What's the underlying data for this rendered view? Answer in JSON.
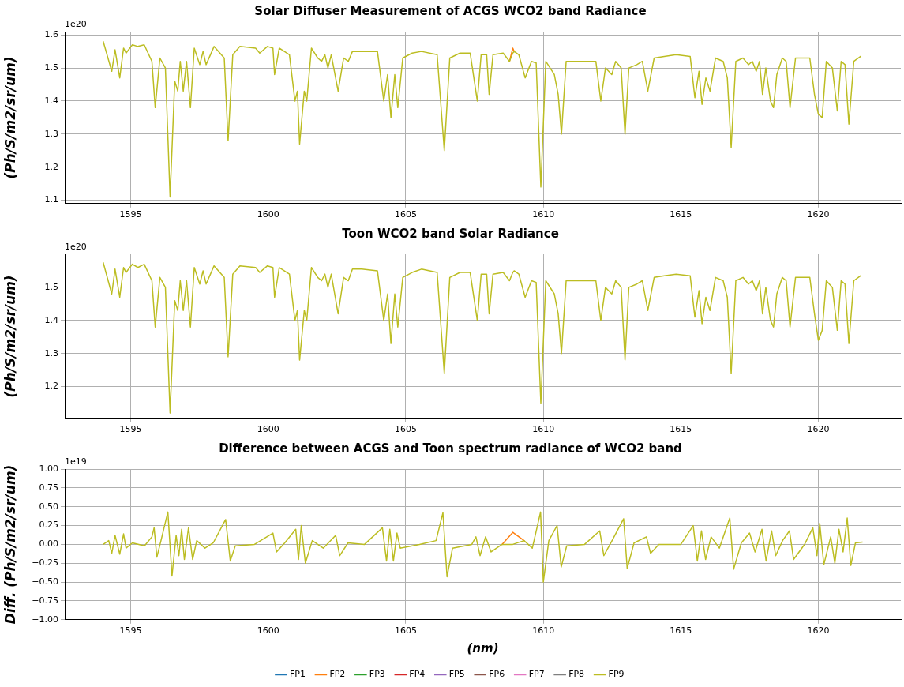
{
  "chart_data": [
    {
      "type": "line",
      "title": "Solar Diffuser Measurement of ACGS WCO2 band Radiance",
      "ylabel": "(Ph/S/m2/sr/um)",
      "annotations": [
        "1e20"
      ],
      "grid": true,
      "legend": false,
      "marker": "none",
      "line_style": "solid",
      "xlim": [
        1592.6,
        1623.0
      ],
      "xticks": [
        1595,
        1600,
        1605,
        1610,
        1615,
        1620
      ],
      "ylim": [
        1.09,
        1.61
      ],
      "yticks": [
        {
          "value": 1.1,
          "label": "1.1"
        },
        {
          "value": 1.2,
          "label": "1.2"
        },
        {
          "value": 1.3,
          "label": "1.3"
        },
        {
          "value": 1.4,
          "label": "1.4"
        },
        {
          "value": 1.5,
          "label": "1.5"
        },
        {
          "value": 1.6,
          "label": "1.6"
        }
      ],
      "x": [
        1594.0,
        1594.31,
        1594.43,
        1594.6,
        1594.74,
        1594.83,
        1595.06,
        1595.26,
        1595.49,
        1595.77,
        1595.89,
        1596.06,
        1596.26,
        1596.43,
        1596.6,
        1596.71,
        1596.8,
        1596.91,
        1597.03,
        1597.17,
        1597.31,
        1597.51,
        1597.63,
        1597.74,
        1598.03,
        1598.4,
        1598.54,
        1598.71,
        1598.97,
        1599.54,
        1599.69,
        1599.97,
        1600.17,
        1600.23,
        1600.4,
        1600.77,
        1600.97,
        1601.06,
        1601.14,
        1601.31,
        1601.4,
        1601.57,
        1601.8,
        1601.94,
        1602.06,
        1602.17,
        1602.29,
        1602.54,
        1602.74,
        1602.91,
        1603.06,
        1603.4,
        1603.97,
        1604.2,
        1604.34,
        1604.46,
        1604.6,
        1604.71,
        1604.89,
        1605.23,
        1605.57,
        1606.14,
        1606.4,
        1606.6,
        1606.97,
        1607.34,
        1607.6,
        1607.74,
        1607.94,
        1608.03,
        1608.17,
        1608.54,
        1608.77,
        1608.89,
        1608.94,
        1609.11,
        1609.34,
        1609.57,
        1609.74,
        1609.91,
        1610.09,
        1610.4,
        1610.54,
        1610.66,
        1610.83,
        1611.11,
        1611.91,
        1612.09,
        1612.26,
        1612.49,
        1612.63,
        1612.83,
        1612.97,
        1613.11,
        1613.4,
        1613.6,
        1613.8,
        1614.03,
        1614.4,
        1614.83,
        1615.34,
        1615.51,
        1615.66,
        1615.77,
        1615.91,
        1616.06,
        1616.26,
        1616.54,
        1616.69,
        1616.83,
        1617.0,
        1617.26,
        1617.46,
        1617.6,
        1617.74,
        1617.86,
        1617.97,
        1618.09,
        1618.26,
        1618.37,
        1618.49,
        1618.69,
        1618.83,
        1618.97,
        1619.17,
        1619.69,
        1619.86,
        1620.0,
        1620.14,
        1620.29,
        1620.4,
        1620.51,
        1620.69,
        1620.83,
        1620.97,
        1621.11,
        1621.29,
        1621.54
      ],
      "series": [
        {
          "color": "#ff7f0e",
          "values": [
            null,
            null,
            null,
            null,
            null,
            null,
            null,
            null,
            null,
            null,
            null,
            null,
            null,
            null,
            null,
            null,
            null,
            null,
            null,
            null,
            null,
            null,
            null,
            null,
            null,
            null,
            null,
            null,
            null,
            null,
            null,
            null,
            null,
            null,
            null,
            null,
            null,
            null,
            null,
            null,
            null,
            null,
            null,
            null,
            null,
            null,
            null,
            null,
            null,
            null,
            null,
            null,
            null,
            null,
            null,
            null,
            null,
            null,
            null,
            null,
            null,
            null,
            null,
            null,
            null,
            null,
            null,
            null,
            null,
            null,
            null,
            null,
            1.52,
            1.56,
            1.55,
            null,
            null,
            null,
            null,
            null,
            null,
            null,
            null,
            null,
            null,
            null,
            null,
            null,
            null,
            null,
            null,
            null,
            null,
            null,
            null,
            null,
            null,
            null,
            null,
            null,
            null,
            null,
            null,
            null,
            null,
            null,
            null,
            null,
            null,
            null,
            null,
            null,
            null,
            null,
            null,
            null,
            null,
            null,
            null,
            null,
            null,
            null,
            null,
            null,
            null,
            null,
            null,
            null,
            null,
            null,
            null,
            null,
            null,
            null,
            null,
            null,
            null,
            null
          ]
        },
        {
          "color": "#bcbd22",
          "values": [
            1.58,
            1.49,
            1.555,
            1.47,
            1.56,
            1.545,
            1.57,
            1.565,
            1.57,
            1.52,
            1.38,
            1.53,
            1.5,
            1.11,
            1.46,
            1.43,
            1.52,
            1.43,
            1.52,
            1.38,
            1.56,
            1.51,
            1.55,
            1.51,
            1.565,
            1.53,
            1.28,
            1.54,
            1.565,
            1.56,
            1.545,
            1.565,
            1.56,
            1.48,
            1.56,
            1.54,
            1.4,
            1.43,
            1.27,
            1.43,
            1.4,
            1.56,
            1.53,
            1.52,
            1.54,
            1.5,
            1.54,
            1.43,
            1.53,
            1.52,
            1.55,
            1.55,
            1.55,
            1.4,
            1.48,
            1.35,
            1.48,
            1.38,
            1.53,
            1.545,
            1.55,
            1.54,
            1.25,
            1.53,
            1.545,
            1.545,
            1.4,
            1.54,
            1.54,
            1.42,
            1.54,
            1.545,
            1.52,
            1.545,
            1.55,
            1.54,
            1.47,
            1.52,
            1.515,
            1.14,
            1.52,
            1.48,
            1.42,
            1.3,
            1.52,
            1.52,
            1.52,
            1.4,
            1.5,
            1.48,
            1.52,
            1.5,
            1.3,
            1.5,
            1.51,
            1.52,
            1.43,
            1.53,
            1.535,
            1.54,
            1.535,
            1.41,
            1.49,
            1.39,
            1.47,
            1.43,
            1.53,
            1.52,
            1.47,
            1.26,
            1.52,
            1.53,
            1.51,
            1.52,
            1.49,
            1.52,
            1.42,
            1.5,
            1.4,
            1.38,
            1.48,
            1.53,
            1.52,
            1.38,
            1.53,
            1.53,
            1.42,
            1.36,
            1.35,
            1.52,
            1.51,
            1.5,
            1.37,
            1.52,
            1.51,
            1.33,
            1.52,
            1.535
          ]
        }
      ]
    },
    {
      "type": "line",
      "title": "Toon WCO2 band Solar Radiance",
      "ylabel": "(Ph/S/m2/sr/um)",
      "annotations": [
        "1e20"
      ],
      "grid": true,
      "legend": false,
      "marker": "none",
      "line_style": "solid",
      "xlim": [
        1592.6,
        1623.0
      ],
      "xticks": [
        1595,
        1600,
        1605,
        1610,
        1615,
        1620
      ],
      "ylim": [
        1.104,
        1.6
      ],
      "yticks": [
        {
          "value": 1.2,
          "label": "1.2"
        },
        {
          "value": 1.3,
          "label": "1.3"
        },
        {
          "value": 1.4,
          "label": "1.4"
        },
        {
          "value": 1.5,
          "label": "1.5"
        }
      ],
      "x": [
        1594.0,
        1594.31,
        1594.43,
        1594.6,
        1594.74,
        1594.83,
        1595.06,
        1595.26,
        1595.49,
        1595.77,
        1595.89,
        1596.06,
        1596.26,
        1596.43,
        1596.6,
        1596.71,
        1596.8,
        1596.91,
        1597.03,
        1597.17,
        1597.31,
        1597.51,
        1597.63,
        1597.74,
        1598.03,
        1598.4,
        1598.54,
        1598.71,
        1598.97,
        1599.54,
        1599.69,
        1599.97,
        1600.17,
        1600.23,
        1600.4,
        1600.77,
        1600.97,
        1601.06,
        1601.14,
        1601.31,
        1601.4,
        1601.57,
        1601.8,
        1601.94,
        1602.06,
        1602.17,
        1602.29,
        1602.54,
        1602.74,
        1602.91,
        1603.06,
        1603.4,
        1603.97,
        1604.2,
        1604.34,
        1604.46,
        1604.6,
        1604.71,
        1604.89,
        1605.23,
        1605.57,
        1606.14,
        1606.4,
        1606.6,
        1606.97,
        1607.34,
        1607.6,
        1607.74,
        1607.94,
        1608.03,
        1608.17,
        1608.54,
        1608.77,
        1608.89,
        1608.94,
        1609.11,
        1609.34,
        1609.57,
        1609.74,
        1609.91,
        1610.09,
        1610.4,
        1610.54,
        1610.66,
        1610.83,
        1611.11,
        1611.91,
        1612.09,
        1612.26,
        1612.49,
        1612.63,
        1612.83,
        1612.97,
        1613.11,
        1613.4,
        1613.6,
        1613.8,
        1614.03,
        1614.4,
        1614.83,
        1615.34,
        1615.51,
        1615.66,
        1615.77,
        1615.91,
        1616.06,
        1616.26,
        1616.54,
        1616.69,
        1616.83,
        1617.0,
        1617.26,
        1617.46,
        1617.6,
        1617.74,
        1617.86,
        1617.97,
        1618.09,
        1618.26,
        1618.37,
        1618.49,
        1618.69,
        1618.83,
        1618.97,
        1619.17,
        1619.69,
        1619.86,
        1620.0,
        1620.14,
        1620.29,
        1620.4,
        1620.51,
        1620.69,
        1620.83,
        1620.97,
        1621.11,
        1621.29,
        1621.54
      ],
      "series": [
        {
          "color": "#bcbd22",
          "values": [
            1.575,
            1.48,
            1.555,
            1.47,
            1.56,
            1.545,
            1.57,
            1.56,
            1.57,
            1.52,
            1.38,
            1.53,
            1.5,
            1.12,
            1.46,
            1.43,
            1.52,
            1.43,
            1.52,
            1.38,
            1.56,
            1.51,
            1.55,
            1.51,
            1.565,
            1.53,
            1.29,
            1.54,
            1.565,
            1.56,
            1.545,
            1.565,
            1.56,
            1.47,
            1.56,
            1.54,
            1.4,
            1.43,
            1.28,
            1.43,
            1.4,
            1.56,
            1.53,
            1.52,
            1.54,
            1.5,
            1.54,
            1.42,
            1.53,
            1.52,
            1.555,
            1.555,
            1.55,
            1.4,
            1.48,
            1.33,
            1.48,
            1.38,
            1.53,
            1.545,
            1.555,
            1.545,
            1.24,
            1.53,
            1.545,
            1.545,
            1.4,
            1.54,
            1.54,
            1.42,
            1.54,
            1.545,
            1.52,
            1.545,
            1.55,
            1.54,
            1.47,
            1.52,
            1.515,
            1.15,
            1.52,
            1.48,
            1.42,
            1.3,
            1.52,
            1.52,
            1.52,
            1.4,
            1.5,
            1.48,
            1.52,
            1.5,
            1.28,
            1.5,
            1.51,
            1.52,
            1.43,
            1.53,
            1.535,
            1.54,
            1.535,
            1.41,
            1.49,
            1.39,
            1.47,
            1.43,
            1.53,
            1.52,
            1.47,
            1.24,
            1.52,
            1.53,
            1.51,
            1.52,
            1.49,
            1.52,
            1.42,
            1.5,
            1.4,
            1.38,
            1.48,
            1.53,
            1.52,
            1.38,
            1.53,
            1.53,
            1.42,
            1.34,
            1.37,
            1.52,
            1.51,
            1.5,
            1.37,
            1.52,
            1.51,
            1.33,
            1.52,
            1.535
          ]
        }
      ]
    },
    {
      "type": "line",
      "title": "Difference between ACGS and Toon spectrum radiance of WCO2 band",
      "xlabel": "(nm)",
      "ylabel": "Diff. (Ph/S/m2/sr/um)",
      "annotations": [
        "1e19"
      ],
      "grid": true,
      "legend": "bottom",
      "marker": "none",
      "line_style": "solid",
      "xlim": [
        1592.6,
        1623.0
      ],
      "xticks": [
        1595,
        1600,
        1605,
        1610,
        1615,
        1620
      ],
      "ylim": [
        -1,
        1
      ],
      "yticks": [
        {
          "value": -1,
          "label": "−1.00"
        },
        {
          "value": -0.75,
          "label": "−0.75"
        },
        {
          "value": -0.5,
          "label": "−0.50"
        },
        {
          "value": -0.25,
          "label": "−0.25"
        },
        {
          "value": 0,
          "label": "0.00"
        },
        {
          "value": 0.25,
          "label": "0.25"
        },
        {
          "value": 0.5,
          "label": "0.50"
        },
        {
          "value": 0.75,
          "label": "0.75"
        },
        {
          "value": 1,
          "label": "1.00"
        }
      ],
      "x": [
        1594.0,
        1594.2,
        1594.31,
        1594.43,
        1594.6,
        1594.74,
        1594.83,
        1595.06,
        1595.5,
        1595.77,
        1595.85,
        1595.95,
        1596.1,
        1596.35,
        1596.5,
        1596.65,
        1596.75,
        1596.85,
        1596.95,
        1597.1,
        1597.25,
        1597.4,
        1597.7,
        1598.0,
        1598.45,
        1598.62,
        1598.8,
        1599.5,
        1600.17,
        1600.3,
        1600.6,
        1601.0,
        1601.1,
        1601.2,
        1601.35,
        1601.6,
        1602.0,
        1602.45,
        1602.6,
        1602.9,
        1603.5,
        1604.15,
        1604.3,
        1604.42,
        1604.55,
        1604.68,
        1604.8,
        1605.5,
        1606.1,
        1606.35,
        1606.5,
        1606.7,
        1607.4,
        1607.55,
        1607.7,
        1607.9,
        1608.1,
        1608.5,
        1608.89,
        1609.3,
        1609.6,
        1609.9,
        1610.0,
        1610.2,
        1610.5,
        1610.65,
        1610.85,
        1611.5,
        1612.05,
        1612.2,
        1612.5,
        1612.92,
        1613.05,
        1613.3,
        1613.75,
        1613.9,
        1614.2,
        1615.0,
        1615.45,
        1615.6,
        1615.75,
        1615.9,
        1616.1,
        1616.4,
        1616.78,
        1616.92,
        1617.2,
        1617.5,
        1617.7,
        1617.95,
        1618.1,
        1618.3,
        1618.45,
        1618.7,
        1618.95,
        1619.1,
        1619.5,
        1619.8,
        1619.95,
        1620.05,
        1620.2,
        1620.45,
        1620.6,
        1620.75,
        1620.9,
        1621.05,
        1621.18,
        1621.35,
        1621.6
      ],
      "series": [
        {
          "name": "FP1",
          "color": "#1f77b4",
          "values": [
            null,
            null,
            null,
            null,
            null,
            null,
            null,
            null,
            null,
            null,
            null,
            null,
            null,
            null,
            null,
            null,
            null,
            null,
            null,
            null,
            null,
            null,
            null,
            null,
            null,
            null,
            null,
            null,
            null,
            null,
            null,
            null,
            null,
            null,
            null,
            null,
            null,
            null,
            null,
            null,
            null,
            null,
            null,
            null,
            null,
            null,
            null,
            null,
            null,
            null,
            null,
            null,
            null,
            null,
            null,
            null,
            null,
            null,
            null,
            null,
            null,
            null,
            null,
            null,
            null,
            null,
            null,
            null,
            null,
            null,
            null,
            null,
            null,
            null,
            null,
            null,
            null,
            null,
            null,
            null,
            null,
            null,
            null,
            null,
            null,
            null,
            null,
            null,
            null,
            null,
            null,
            null,
            null,
            null,
            null,
            null,
            null,
            null,
            null,
            null,
            null,
            null,
            null,
            null,
            null,
            null,
            null,
            null,
            null
          ]
        },
        {
          "name": "FP2",
          "color": "#ff7f0e",
          "values": [
            null,
            null,
            null,
            null,
            null,
            null,
            null,
            null,
            null,
            null,
            null,
            null,
            null,
            null,
            null,
            null,
            null,
            null,
            null,
            null,
            null,
            null,
            null,
            null,
            null,
            null,
            null,
            null,
            null,
            null,
            null,
            null,
            null,
            null,
            null,
            null,
            null,
            null,
            null,
            null,
            null,
            null,
            null,
            null,
            null,
            null,
            null,
            null,
            null,
            null,
            null,
            null,
            null,
            null,
            null,
            null,
            null,
            0,
            0.16,
            0.05,
            null,
            null,
            null,
            null,
            null,
            null,
            null,
            null,
            null,
            null,
            null,
            null,
            null,
            null,
            null,
            null,
            null,
            null,
            null,
            null,
            null,
            null,
            null,
            null,
            null,
            null,
            null,
            null,
            null,
            null,
            null,
            null,
            null,
            null,
            null,
            null,
            null,
            null,
            null,
            null,
            null,
            null,
            null,
            null,
            null,
            null,
            null,
            null,
            null
          ]
        },
        {
          "name": "FP3",
          "color": "#2ca02c",
          "values": [
            null,
            null,
            null,
            null,
            null,
            null,
            null,
            null,
            null,
            null,
            null,
            null,
            null,
            null,
            null,
            null,
            null,
            null,
            null,
            null,
            null,
            null,
            null,
            null,
            null,
            null,
            null,
            null,
            null,
            null,
            null,
            null,
            null,
            null,
            null,
            null,
            null,
            null,
            null,
            null,
            null,
            null,
            null,
            null,
            null,
            null,
            null,
            null,
            null,
            null,
            null,
            null,
            null,
            null,
            null,
            null,
            null,
            null,
            null,
            null,
            null,
            null,
            null,
            null,
            null,
            null,
            null,
            null,
            null,
            null,
            null,
            null,
            null,
            null,
            null,
            null,
            null,
            null,
            null,
            null,
            null,
            null,
            null,
            null,
            null,
            null,
            null,
            null,
            null,
            null,
            null,
            null,
            null,
            null,
            null,
            null,
            null,
            null,
            null,
            null,
            null,
            null,
            null,
            null,
            null,
            null,
            null,
            null,
            null
          ]
        },
        {
          "name": "FP4",
          "color": "#d62728",
          "values": [
            null,
            null,
            null,
            null,
            null,
            null,
            null,
            null,
            null,
            null,
            null,
            null,
            null,
            null,
            null,
            null,
            null,
            null,
            null,
            null,
            null,
            null,
            null,
            null,
            null,
            null,
            null,
            null,
            null,
            null,
            null,
            null,
            null,
            null,
            null,
            null,
            null,
            null,
            null,
            null,
            null,
            null,
            null,
            null,
            null,
            null,
            null,
            null,
            null,
            null,
            null,
            null,
            null,
            null,
            null,
            null,
            null,
            null,
            null,
            null,
            null,
            null,
            null,
            null,
            null,
            null,
            null,
            null,
            null,
            null,
            null,
            null,
            null,
            null,
            null,
            null,
            null,
            null,
            null,
            null,
            null,
            null,
            null,
            null,
            null,
            null,
            null,
            null,
            null,
            null,
            null,
            null,
            null,
            null,
            null,
            null,
            null,
            null,
            null,
            null,
            null,
            null,
            null,
            null,
            null,
            null,
            null,
            null,
            null
          ]
        },
        {
          "name": "FP5",
          "color": "#9467bd",
          "values": [
            null,
            null,
            null,
            null,
            null,
            null,
            null,
            null,
            null,
            null,
            null,
            null,
            null,
            null,
            null,
            null,
            null,
            null,
            null,
            null,
            null,
            null,
            null,
            null,
            null,
            null,
            null,
            null,
            null,
            null,
            null,
            null,
            null,
            null,
            null,
            null,
            null,
            null,
            null,
            null,
            null,
            null,
            null,
            null,
            null,
            null,
            null,
            null,
            null,
            null,
            null,
            null,
            null,
            null,
            null,
            null,
            null,
            null,
            null,
            null,
            null,
            null,
            null,
            null,
            null,
            null,
            null,
            null,
            null,
            null,
            null,
            null,
            null,
            null,
            null,
            null,
            null,
            null,
            null,
            null,
            null,
            null,
            null,
            null,
            null,
            null,
            null,
            null,
            null,
            null,
            null,
            null,
            null,
            null,
            null,
            null,
            null,
            null,
            null,
            null,
            null,
            null,
            null,
            null,
            null,
            null,
            null,
            null,
            null
          ]
        },
        {
          "name": "FP6",
          "color": "#8c564b",
          "values": [
            null,
            null,
            null,
            null,
            null,
            null,
            null,
            null,
            null,
            null,
            null,
            null,
            null,
            null,
            null,
            null,
            null,
            null,
            null,
            null,
            null,
            null,
            null,
            null,
            null,
            null,
            null,
            null,
            null,
            null,
            null,
            null,
            null,
            null,
            null,
            null,
            null,
            null,
            null,
            null,
            null,
            null,
            null,
            null,
            null,
            null,
            null,
            null,
            null,
            null,
            null,
            null,
            null,
            null,
            null,
            null,
            null,
            null,
            null,
            null,
            null,
            null,
            null,
            null,
            null,
            null,
            null,
            null,
            null,
            null,
            null,
            null,
            null,
            null,
            null,
            null,
            null,
            null,
            null,
            null,
            null,
            null,
            null,
            null,
            null,
            null,
            null,
            null,
            null,
            null,
            null,
            null,
            null,
            null,
            null,
            null,
            null,
            null,
            null,
            null,
            null,
            null,
            null,
            null,
            null,
            null,
            null,
            null,
            null
          ]
        },
        {
          "name": "FP7",
          "color": "#e377c2",
          "values": [
            null,
            null,
            null,
            null,
            null,
            null,
            null,
            null,
            null,
            null,
            null,
            null,
            null,
            null,
            null,
            null,
            null,
            null,
            null,
            null,
            null,
            null,
            null,
            null,
            null,
            null,
            null,
            null,
            null,
            null,
            null,
            null,
            null,
            null,
            null,
            null,
            null,
            null,
            null,
            null,
            null,
            null,
            null,
            null,
            null,
            null,
            null,
            null,
            null,
            null,
            null,
            null,
            null,
            null,
            null,
            null,
            null,
            null,
            null,
            null,
            null,
            null,
            null,
            null,
            null,
            null,
            null,
            null,
            null,
            null,
            null,
            null,
            null,
            null,
            null,
            null,
            null,
            null,
            null,
            null,
            null,
            null,
            null,
            null,
            null,
            null,
            null,
            null,
            null,
            null,
            null,
            null,
            null,
            null,
            null,
            null,
            null,
            null,
            null,
            null,
            null,
            null,
            null,
            null,
            null,
            null,
            null,
            null,
            null
          ]
        },
        {
          "name": "FP8",
          "color": "#7f7f7f",
          "values": [
            null,
            null,
            null,
            null,
            null,
            null,
            null,
            null,
            null,
            null,
            null,
            null,
            null,
            null,
            null,
            null,
            null,
            null,
            null,
            null,
            null,
            null,
            null,
            null,
            null,
            null,
            null,
            null,
            null,
            null,
            null,
            null,
            null,
            null,
            null,
            null,
            null,
            null,
            null,
            null,
            null,
            null,
            null,
            null,
            null,
            null,
            null,
            null,
            null,
            null,
            null,
            null,
            null,
            null,
            null,
            null,
            null,
            null,
            null,
            null,
            null,
            null,
            null,
            null,
            null,
            null,
            null,
            null,
            null,
            null,
            null,
            null,
            null,
            null,
            null,
            null,
            null,
            null,
            null,
            null,
            null,
            null,
            null,
            null,
            null,
            null,
            null,
            null,
            null,
            null,
            null,
            null,
            null,
            null,
            null,
            null,
            null,
            null,
            null,
            null,
            null,
            null,
            null,
            null,
            null,
            null,
            null,
            null,
            null
          ]
        },
        {
          "name": "FP9",
          "color": "#bcbd22",
          "values": [
            0,
            0.05,
            -0.12,
            0.12,
            -0.13,
            0.14,
            -0.05,
            0.02,
            -0.02,
            0.1,
            0.22,
            -0.17,
            0.05,
            0.43,
            -0.42,
            0.12,
            -0.15,
            0.2,
            -0.2,
            0.22,
            -0.2,
            0.05,
            -0.05,
            0.02,
            0.33,
            -0.22,
            -0.02,
            0,
            0.15,
            -0.1,
            0.02,
            0.2,
            -0.2,
            0.25,
            -0.25,
            0.05,
            -0.05,
            0.12,
            -0.15,
            0.02,
            0,
            0.22,
            -0.22,
            0.2,
            -0.22,
            0.15,
            -0.05,
            0,
            0.05,
            0.42,
            -0.43,
            -0.05,
            0,
            0.1,
            -0.15,
            0.1,
            -0.1,
            0,
            0,
            0.05,
            -0.05,
            0.43,
            -0.5,
            0.05,
            0.25,
            -0.3,
            -0.02,
            0,
            0.18,
            -0.15,
            0.05,
            0.34,
            -0.32,
            0.02,
            0.1,
            -0.12,
            0,
            0,
            0.25,
            -0.22,
            0.18,
            -0.2,
            0.1,
            -0.05,
            0.35,
            -0.33,
            0.02,
            0.15,
            -0.1,
            0.2,
            -0.22,
            0.18,
            -0.15,
            0.05,
            0.18,
            -0.2,
            0,
            0.22,
            -0.15,
            0.28,
            -0.27,
            0.1,
            -0.25,
            0.2,
            -0.1,
            0.35,
            -0.28,
            0.02,
            0.03
          ]
        }
      ]
    }
  ]
}
